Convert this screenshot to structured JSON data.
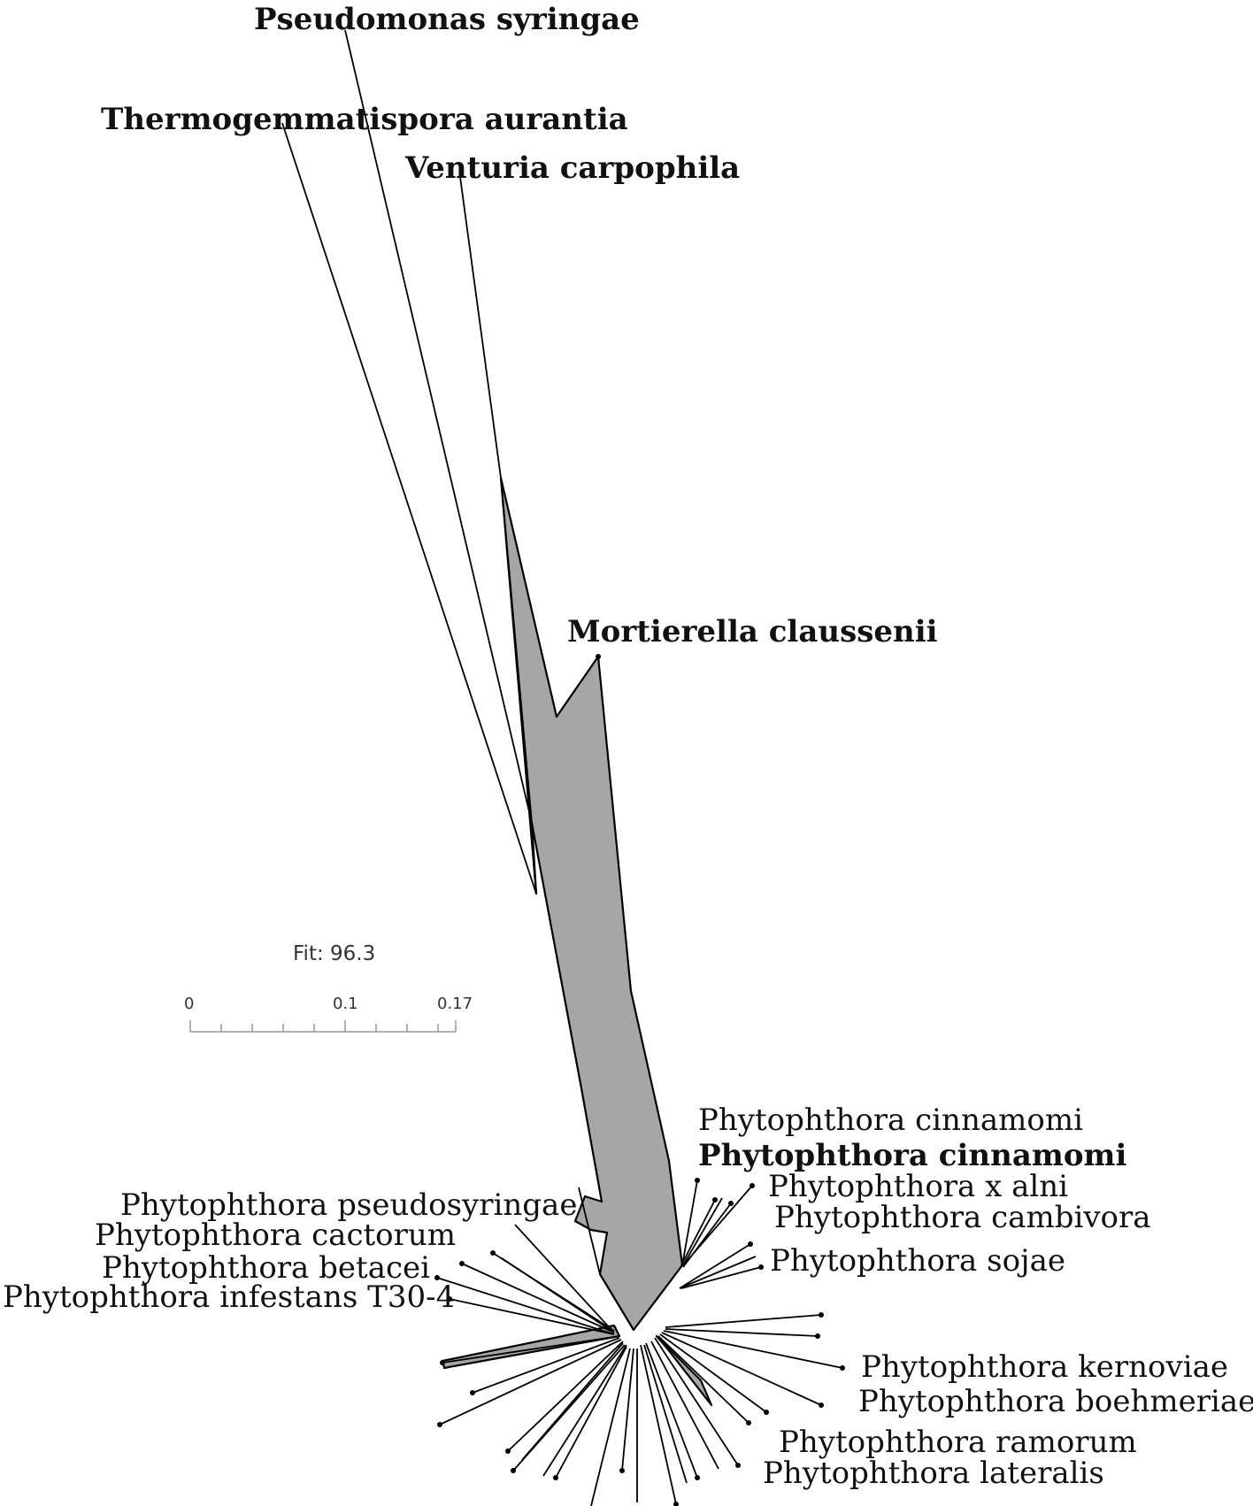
{
  "fit_text": "Fit: 96.3",
  "scale_bar": {
    "ticks": [
      "0",
      "0.1",
      "0.17"
    ]
  },
  "taxa": {
    "pseudomonas": "Pseudomonas syringae",
    "thermogemmatispora": "Thermogemmatispora aurantia",
    "venturia": "Venturia carpophila",
    "mortierella": "Mortierella claussenii",
    "cinnamomi_1": "Phytophthora cinnamomi",
    "cinnamomi_2": "Phytophthora cinnamomi",
    "x_alni": "Phytophthora x alni",
    "cambivora": "Phytophthora cambivora",
    "sojae": "Phytophthora sojae",
    "pseudosyringae": "Phytophthora pseudosyringae",
    "cactorum": "Phytophthora cactorum",
    "betacei": "Phytophthora betacei",
    "infestans": "Phytophthora infestans T30-4",
    "kernoviae": "Phytophthora kernoviae",
    "boehmeriae": "Phytophthora boehmeriae",
    "ramorum": "Phytophthora ramorum",
    "lateralis": "Phytophthora lateralis"
  }
}
